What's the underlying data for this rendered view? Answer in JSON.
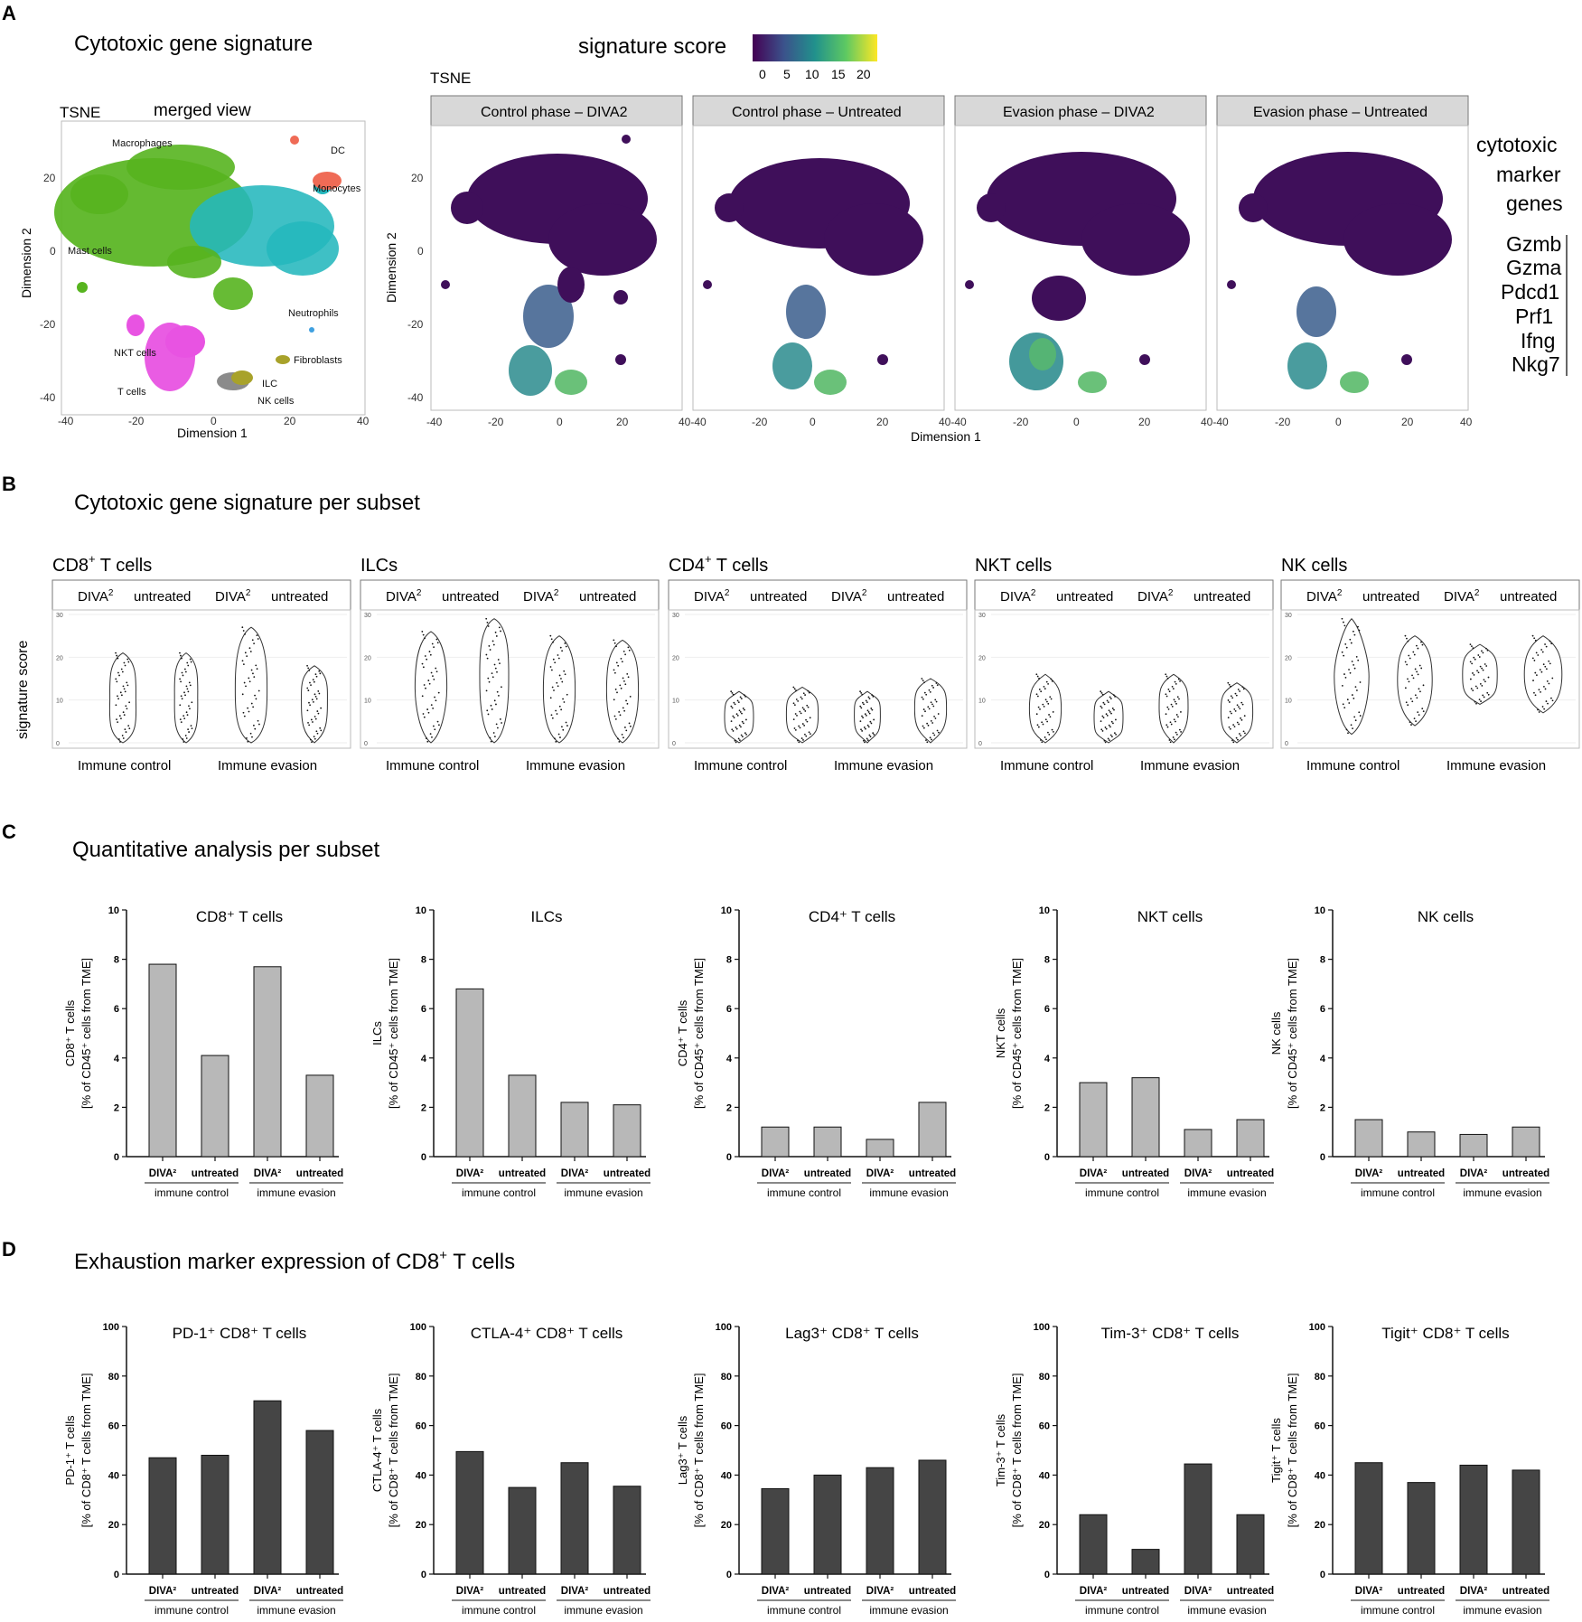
{
  "panel_letters": [
    "A",
    "B",
    "C",
    "D"
  ],
  "panel_a": {
    "title": "Cytotoxic gene signature",
    "tsne_label": "TSNE",
    "merged_title": "merged view",
    "xlabel": "Dimension 1",
    "ylabel": "Dimension 2",
    "x_ticks": [
      "-40",
      "-20",
      "0",
      "20",
      "40"
    ],
    "y_ticks": [
      "20",
      "0",
      "-20",
      "-40"
    ],
    "cluster_labels": [
      "Macrophages",
      "DC",
      "Monocytes",
      "Mast cells",
      "Neutrophils",
      "Fibroblasts",
      "NKT cells",
      "T cells",
      "ILC",
      "NK cells"
    ],
    "colorbar": {
      "title": "signature score",
      "ticks": [
        "0",
        "5",
        "10",
        "15",
        "20"
      ],
      "colors": [
        "#440154",
        "#3b528b",
        "#21918c",
        "#5ec962",
        "#fde725"
      ]
    },
    "facets": [
      "Control phase – DIVA2",
      "Control phase – Untreated",
      "Evasion phase – DIVA2",
      "Evasion phase – Untreated"
    ],
    "facet_x_ticks": [
      "-40",
      "-20",
      "0",
      "20",
      "40-40",
      "-20",
      "0",
      "20",
      "40-40",
      "-20",
      "0",
      "20",
      "40-40",
      "-20",
      "0",
      "20",
      "40"
    ],
    "marker_heading": [
      "cytotoxic",
      "marker",
      "genes"
    ],
    "marker_genes": [
      "Gzmb",
      "Gzma",
      "Pdcd1",
      "Prf1",
      "Ifng",
      "Nkg7"
    ]
  },
  "panel_b": {
    "title": "Cytotoxic gene signature per subset",
    "ylabel": "signature score",
    "y_ticks": [
      "30",
      "20",
      "10",
      "0"
    ],
    "group_labels": [
      "Immune control",
      "Immune evasion"
    ],
    "strip_labels": [
      "DIVA",
      "untreated",
      "DIVA",
      "untreated"
    ],
    "superscript": "2",
    "subsets": [
      {
        "title": "CD8",
        "sup": "+",
        "suffix": " T cells"
      },
      {
        "title": "ILCs",
        "sup": "",
        "suffix": ""
      },
      {
        "title": "CD4",
        "sup": "+",
        "suffix": " T cells"
      },
      {
        "title": "NKT cells",
        "sup": "",
        "suffix": ""
      },
      {
        "title": "NK cells",
        "sup": "",
        "suffix": ""
      }
    ]
  },
  "panel_c": {
    "title": "Quantitative analysis per subset"
  },
  "panel_d": {
    "title_pre": "Exhaustion marker expression of CD8",
    "title_sup": "+",
    "title_post": " T cells"
  },
  "chart_data": [
    {
      "type": "bar",
      "panel": "C",
      "title": "CD8⁺ T cells",
      "ylabel": "CD8⁺ T cells [% of CD45⁺ cells from TME]",
      "ylim": [
        0,
        10
      ],
      "yticks": [
        "0",
        "2",
        "4",
        "6",
        "8",
        "10"
      ],
      "categories": [
        "DIVA²",
        "untreated",
        "DIVA²",
        "untreated"
      ],
      "groups": [
        "immune control",
        "immune evasion"
      ],
      "values": [
        7.8,
        4.1,
        7.7,
        3.3
      ],
      "color": "#b8b8b8"
    },
    {
      "type": "bar",
      "panel": "C",
      "title": "ILCs",
      "ylabel": "ILCs [% of CD45⁺ cells from TME]",
      "ylim": [
        0,
        10
      ],
      "yticks": [
        "0",
        "2",
        "4",
        "6",
        "8",
        "10"
      ],
      "categories": [
        "DIVA²",
        "untreated",
        "DIVA²",
        "untreated"
      ],
      "groups": [
        "immune control",
        "immune evasion"
      ],
      "values": [
        6.8,
        3.3,
        2.2,
        2.1
      ],
      "color": "#b8b8b8"
    },
    {
      "type": "bar",
      "panel": "C",
      "title": "CD4⁺ T cells",
      "ylabel": "CD4⁺ T cells [% of CD45⁺ cells from TME]",
      "ylim": [
        0,
        10
      ],
      "yticks": [
        "0",
        "2",
        "4",
        "6",
        "8",
        "10"
      ],
      "categories": [
        "DIVA²",
        "untreated",
        "DIVA²",
        "untreated"
      ],
      "groups": [
        "immune control",
        "immune evasion"
      ],
      "values": [
        1.2,
        1.2,
        0.7,
        2.2
      ],
      "color": "#b8b8b8"
    },
    {
      "type": "bar",
      "panel": "C",
      "title": "NKT cells",
      "ylabel": "NKT cells [% of CD45⁺ cells from TME]",
      "ylim": [
        0,
        10
      ],
      "yticks": [
        "0",
        "2",
        "4",
        "6",
        "8",
        "10"
      ],
      "categories": [
        "DIVA²",
        "untreated",
        "DIVA²",
        "untreated"
      ],
      "groups": [
        "immune control",
        "immune evasion"
      ],
      "values": [
        3.0,
        3.2,
        1.1,
        1.5
      ],
      "color": "#b8b8b8"
    },
    {
      "type": "bar",
      "panel": "C",
      "title": "NK cells",
      "ylabel": "NK cells [% of CD45⁺ cells from TME]",
      "ylim": [
        0,
        10
      ],
      "yticks": [
        "0",
        "2",
        "4",
        "6",
        "8",
        "10"
      ],
      "categories": [
        "DIVA²",
        "untreated",
        "DIVA²",
        "untreated"
      ],
      "groups": [
        "immune control",
        "immune evasion"
      ],
      "values": [
        1.5,
        1.0,
        0.9,
        1.2
      ],
      "color": "#b8b8b8"
    },
    {
      "type": "bar",
      "panel": "D",
      "title": "PD-1⁺ CD8⁺ T cells",
      "ylabel": "PD-1⁺ T cells [% of CD8⁺ T cells from TME]",
      "ylim": [
        0,
        100
      ],
      "yticks": [
        "0",
        "20",
        "40",
        "60",
        "80",
        "100"
      ],
      "categories": [
        "DIVA²",
        "untreated",
        "DIVA²",
        "untreated"
      ],
      "groups": [
        "immune control",
        "immune evasion"
      ],
      "values": [
        47,
        48,
        70,
        58
      ],
      "color": "#454545"
    },
    {
      "type": "bar",
      "panel": "D",
      "title": "CTLA-4⁺ CD8⁺ T cells",
      "ylabel": "CTLA-4⁺ T cells [% of CD8⁺ T cells from TME]",
      "ylim": [
        0,
        100
      ],
      "yticks": [
        "0",
        "20",
        "40",
        "60",
        "80",
        "100"
      ],
      "categories": [
        "DIVA²",
        "untreated",
        "DIVA²",
        "untreated"
      ],
      "groups": [
        "immune control",
        "immune evasion"
      ],
      "values": [
        49.5,
        35,
        45,
        35.5
      ],
      "color": "#454545"
    },
    {
      "type": "bar",
      "panel": "D",
      "title": "Lag3⁺ CD8⁺ T cells",
      "ylabel": "Lag3⁺ T cells [% of CD8⁺ T cells from TME]",
      "ylim": [
        0,
        100
      ],
      "yticks": [
        "0",
        "20",
        "40",
        "60",
        "80",
        "100"
      ],
      "categories": [
        "DIVA²",
        "untreated",
        "DIVA²",
        "untreated"
      ],
      "groups": [
        "immune control",
        "immune evasion"
      ],
      "values": [
        34.5,
        40,
        43,
        46
      ],
      "color": "#454545"
    },
    {
      "type": "bar",
      "panel": "D",
      "title": "Tim-3⁺ CD8⁺ T cells",
      "ylabel": "Tim-3⁺ T cells [% of CD8⁺ T cells from TME]",
      "ylim": [
        0,
        100
      ],
      "yticks": [
        "0",
        "20",
        "40",
        "60",
        "80",
        "100"
      ],
      "categories": [
        "DIVA²",
        "untreated",
        "DIVA²",
        "untreated"
      ],
      "groups": [
        "immune control",
        "immune evasion"
      ],
      "values": [
        24,
        10,
        44.5,
        24
      ],
      "color": "#454545"
    },
    {
      "type": "bar",
      "panel": "D",
      "title": "Tigit⁺ CD8⁺ T cells",
      "ylabel": "Tigit⁺ T cells [% of CD8⁺ T cells from TME]",
      "ylim": [
        0,
        100
      ],
      "yticks": [
        "0",
        "20",
        "40",
        "60",
        "80",
        "100"
      ],
      "categories": [
        "DIVA²",
        "untreated",
        "DIVA²",
        "untreated"
      ],
      "groups": [
        "immune control",
        "immune evasion"
      ],
      "values": [
        45,
        37,
        44,
        42
      ],
      "color": "#454545"
    }
  ]
}
